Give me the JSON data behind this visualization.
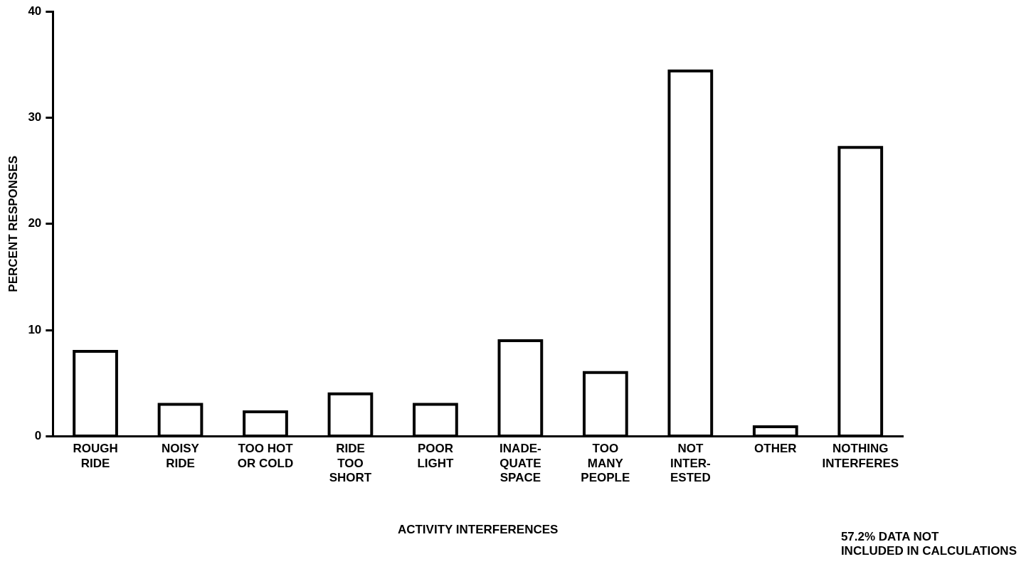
{
  "chart_data": {
    "type": "bar",
    "categories": [
      "ROUGH\nRIDE",
      "NOISY\nRIDE",
      "TOO HOT\nOR COLD",
      "RIDE\nTOO\nSHORT",
      "POOR\nLIGHT",
      "INADE-\nQUATE\nSPACE",
      "TOO\nMANY\nPEOPLE",
      "NOT\nINTER-\nESTED",
      "OTHER",
      "NOTHING\nINTERFERES"
    ],
    "values": [
      8,
      3,
      2.3,
      4,
      3,
      9,
      6,
      34.4,
      0.9,
      27.2
    ],
    "color": "#000000",
    "xlabel": "ACTIVITY INTERFERENCES",
    "ylabel": "PERCENT RESPONSES",
    "ylim": [
      0,
      40
    ],
    "yticks": [
      0,
      10,
      20,
      30,
      40
    ],
    "grid": false,
    "legend": false,
    "annotations": [
      "57.2% DATA NOT\nINCLUDED IN CALCULATIONS"
    ]
  }
}
